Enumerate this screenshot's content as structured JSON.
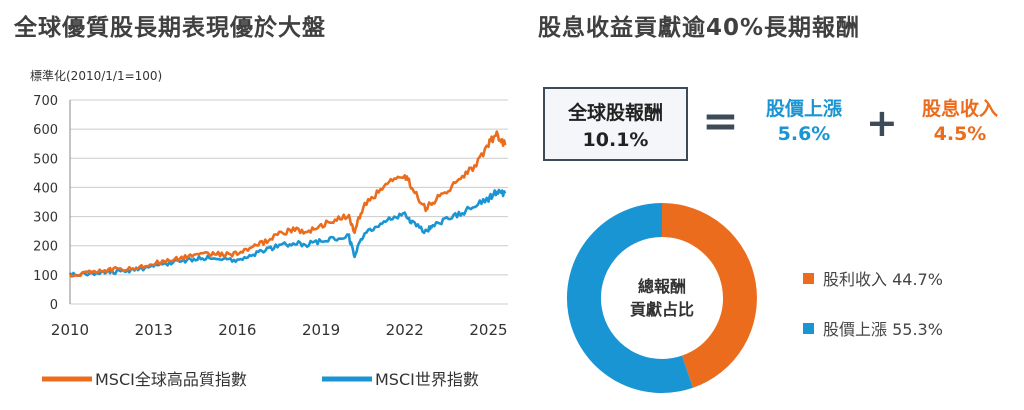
{
  "left_title": "全球優質股長期表現優於大盤",
  "right_title": "股息收益貢獻逾40%長期報酬",
  "colors": {
    "quality": "#ec6c1e",
    "world": "#1a95d4",
    "grid": "#cccccc",
    "box_border": "#3d4a57"
  },
  "chart_data": [
    {
      "type": "line",
      "title": "",
      "ylabel": "標準化(2010/1/1=100)",
      "xlabel": "",
      "xlim": [
        2010,
        2025.7
      ],
      "ylim": [
        0,
        700
      ],
      "x_ticks": [
        "2010",
        "2013",
        "2016",
        "2019",
        "2022",
        "2025"
      ],
      "y_ticks": [
        "0",
        "100",
        "200",
        "300",
        "400",
        "500",
        "600",
        "700"
      ],
      "grid": true,
      "legend": "bottom",
      "x": [
        2010,
        2010.5,
        2011,
        2011.5,
        2012,
        2012.5,
        2013,
        2013.5,
        2014,
        2014.5,
        2015,
        2015.5,
        2016,
        2016.5,
        2017,
        2017.5,
        2018,
        2018.5,
        2019,
        2019.5,
        2020,
        2020.2,
        2020.5,
        2021,
        2021.5,
        2022,
        2022.3,
        2022.75,
        2023,
        2023.5,
        2024,
        2024.5,
        2025,
        2025.3,
        2025.6
      ],
      "series": [
        {
          "name": "MSCI全球高品質指數",
          "values": [
            100,
            105,
            112,
            118,
            120,
            128,
            140,
            148,
            158,
            168,
            175,
            170,
            172,
            190,
            215,
            240,
            255,
            248,
            270,
            290,
            300,
            250,
            330,
            380,
            420,
            445,
            390,
            330,
            350,
            390,
            430,
            470,
            550,
            580,
            545
          ]
        },
        {
          "name": "MSCI世界指數",
          "values": [
            100,
            102,
            108,
            110,
            112,
            120,
            130,
            140,
            148,
            155,
            160,
            155,
            152,
            165,
            185,
            200,
            210,
            205,
            215,
            225,
            230,
            165,
            235,
            270,
            295,
            310,
            275,
            250,
            270,
            290,
            310,
            335,
            360,
            385,
            380
          ]
        }
      ]
    },
    {
      "type": "pie",
      "title": "",
      "center_text": [
        "總報酬",
        "貢獻占比"
      ],
      "categories": [
        "股利收入",
        "股價上漲"
      ],
      "values": [
        44.7,
        55.3
      ],
      "labels": [
        "股利收入 44.7%",
        "股價上漲 55.3%"
      ],
      "legend": "right"
    }
  ],
  "total_box": {
    "label": "全球股報酬",
    "value": "10.1%"
  },
  "equals": "=",
  "plus": "+",
  "part1": {
    "label": "股價上漲",
    "value": "5.6%"
  },
  "part2": {
    "label": "股息收入",
    "value": "4.5%"
  }
}
